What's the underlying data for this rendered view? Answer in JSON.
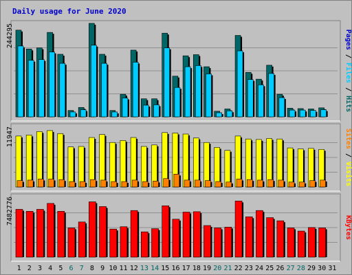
{
  "chart_data": {
    "type": "bar",
    "title": "Daily usage for June 2020",
    "categories": [
      "1",
      "2",
      "3",
      "4",
      "5",
      "6",
      "7",
      "8",
      "9",
      "10",
      "11",
      "12",
      "13",
      "14",
      "15",
      "16",
      "17",
      "18",
      "19",
      "20",
      "21",
      "22",
      "23",
      "24",
      "25",
      "26",
      "27",
      "28",
      "29",
      "30",
      "31"
    ],
    "weekend_days": [
      "6",
      "7",
      "13",
      "14",
      "20",
      "21",
      "27",
      "28"
    ],
    "panels": [
      {
        "id": "hits-files-pages",
        "ylabel_top_value": "244295",
        "ylim": [
          0,
          244295
        ],
        "legend": [
          "Pages",
          "Files",
          "Hits"
        ],
        "series": [
          {
            "name": "Hits",
            "color": "#006666",
            "values": [
              230000,
              180000,
              183000,
              224000,
              166000,
              17000,
              25000,
              248000,
              166000,
              17000,
              60000,
              177000,
              48000,
              48000,
              222000,
              108000,
              162000,
              165000,
              133000,
              15000,
              21000,
              216000,
              118000,
              100000,
              137000,
              60000,
              23000,
              22000,
              21000,
              24000,
              0
            ]
          },
          {
            "name": "Files",
            "color": "#00ccff",
            "values": [
              188000,
              150000,
              152000,
              172000,
              142000,
              13000,
              19000,
              190000,
              142000,
              13000,
              50000,
              145000,
              31000,
              32000,
              183000,
              78000,
              133000,
              136000,
              114000,
              11000,
              16000,
              175000,
              99000,
              85000,
              115000,
              51000,
              18000,
              18000,
              17000,
              19000,
              0
            ]
          },
          {
            "name": "Pages",
            "color": "#0000cc",
            "values": [
              0,
              0,
              0,
              0,
              0,
              0,
              0,
              0,
              0,
              0,
              0,
              0,
              0,
              0,
              0,
              0,
              0,
              0,
              0,
              0,
              0,
              0,
              0,
              0,
              0,
              0,
              0,
              0,
              0,
              0,
              0
            ]
          }
        ]
      },
      {
        "id": "visits-sites",
        "ylabel_top_value": "11947",
        "ylim": [
          0,
          11947
        ],
        "legend": [
          "Sites",
          "Visits"
        ],
        "series": [
          {
            "name": "Visits",
            "color": "#ffff00",
            "values": [
              10300,
              10500,
              11200,
              11400,
              10800,
              8100,
              8200,
              10000,
              10600,
              9000,
              9400,
              10000,
              8200,
              8500,
              11000,
              10900,
              10700,
              9900,
              9000,
              8000,
              7400,
              10300,
              9700,
              9600,
              9800,
              9700,
              7900,
              7700,
              7800,
              7600,
              0
            ]
          },
          {
            "name": "Sites",
            "color": "#ff8000",
            "values": [
              1300,
              1400,
              1600,
              1600,
              1500,
              1100,
              1100,
              1500,
              1400,
              1100,
              1100,
              1400,
              1100,
              1200,
              1700,
              2600,
              1400,
              1400,
              1300,
              1100,
              1000,
              1600,
              1500,
              1400,
              1500,
              1400,
              1000,
              1000,
              1300,
              1400,
              0
            ]
          }
        ]
      },
      {
        "id": "kbytes",
        "ylabel_top_value": "7482776",
        "ylim": [
          0,
          7482776
        ],
        "legend": [
          "KBytes"
        ],
        "series": [
          {
            "name": "KBytes",
            "color": "#ff0000",
            "values": [
              6050000,
              5800000,
              6050000,
              6800000,
              5800000,
              3700000,
              4450000,
              7000000,
              6400000,
              3550000,
              3850000,
              5900000,
              3200000,
              3600000,
              6500000,
              4800000,
              5700000,
              5750000,
              4000000,
              3700000,
              3800000,
              7100000,
              5100000,
              5900000,
              5000000,
              4600000,
              3700000,
              3300000,
              3750000,
              3700000,
              0
            ]
          }
        ]
      }
    ]
  },
  "colors": {
    "title": "#0000cc",
    "label_weekday": "#000000",
    "label_weekend": "#006666",
    "panel_bg": "#c0c0c0"
  }
}
